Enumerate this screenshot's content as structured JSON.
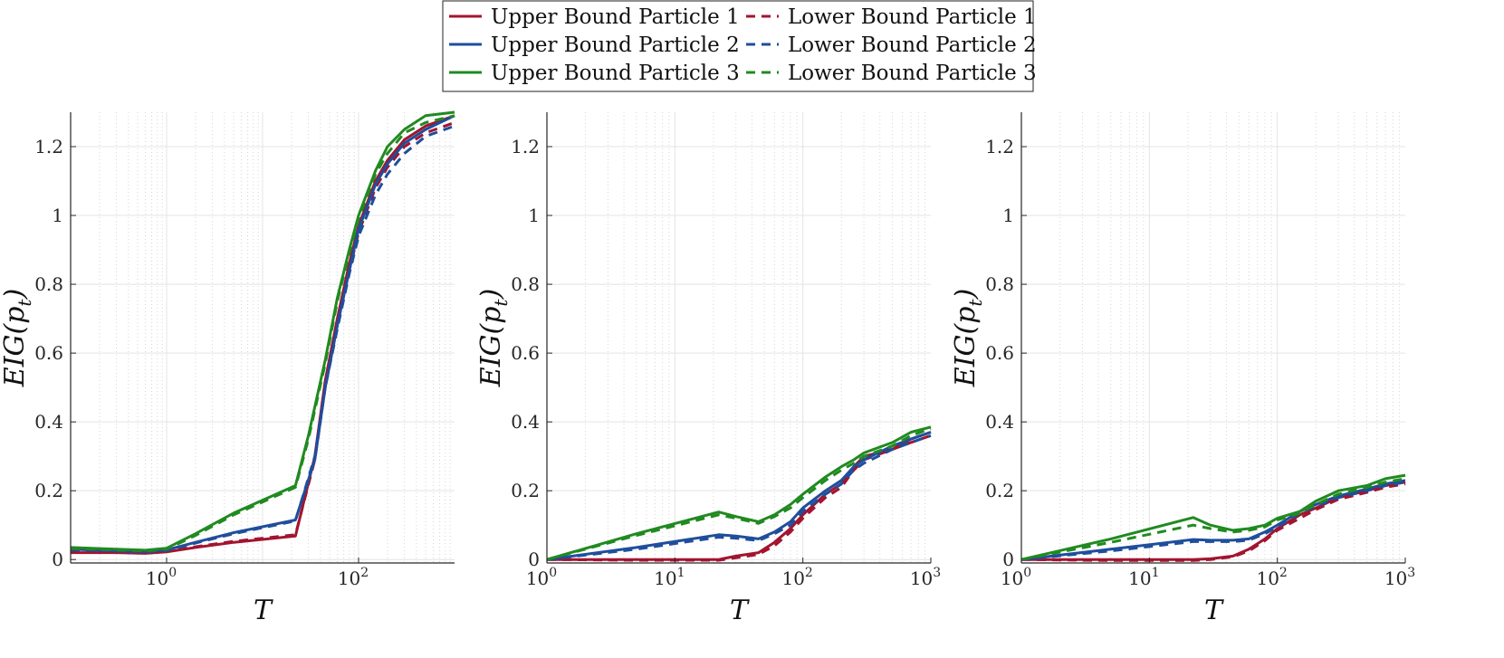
{
  "legend": {
    "entries": [
      {
        "label": "Upper Bound Particle 1",
        "color": "#a2142f",
        "style": "solid"
      },
      {
        "label": "Lower Bound Particle 1",
        "color": "#a2142f",
        "style": "dashed"
      },
      {
        "label": "Upper Bound Particle 2",
        "color": "#1f4e9c",
        "style": "solid"
      },
      {
        "label": "Lower Bound Particle 2",
        "color": "#1f4e9c",
        "style": "dashed"
      },
      {
        "label": "Upper Bound Particle 3",
        "color": "#208a20",
        "style": "solid"
      },
      {
        "label": "Lower Bound Particle 3",
        "color": "#208a20",
        "style": "dashed"
      }
    ],
    "placement": "top-center"
  },
  "chart_data": [
    {
      "type": "line",
      "xscale": "log",
      "xlim": [
        0.1,
        1000
      ],
      "ylim": [
        -0.01,
        1.3
      ],
      "xlabel": "T",
      "ylabel": "EIG(p_t)",
      "xticks": [
        {
          "base": "10",
          "exp": "0",
          "value": 1
        },
        {
          "base": "10",
          "exp": "2",
          "value": 100
        }
      ],
      "yticks": [
        "0",
        "0.2",
        "0.4",
        "0.6",
        "0.8",
        "1",
        "1.2"
      ],
      "grid": true,
      "series": [
        {
          "legend_index": 0,
          "x": [
            0.1,
            0.3,
            0.6,
            1,
            2,
            5,
            22,
            35,
            45,
            60,
            80,
            100,
            150,
            200,
            300,
            500,
            1000
          ],
          "y": [
            0.02,
            0.02,
            0.018,
            0.022,
            0.035,
            0.05,
            0.068,
            0.3,
            0.52,
            0.7,
            0.86,
            0.97,
            1.1,
            1.16,
            1.22,
            1.26,
            1.29
          ]
        },
        {
          "legend_index": 1,
          "x": [
            0.1,
            0.3,
            0.6,
            1,
            2,
            5,
            22,
            35,
            45,
            60,
            80,
            100,
            150,
            200,
            300,
            500,
            1000
          ],
          "y": [
            0.025,
            0.022,
            0.02,
            0.024,
            0.037,
            0.053,
            0.072,
            0.29,
            0.5,
            0.68,
            0.84,
            0.95,
            1.08,
            1.14,
            1.2,
            1.24,
            1.27
          ]
        },
        {
          "legend_index": 2,
          "x": [
            0.1,
            0.3,
            0.6,
            1,
            2,
            5,
            22,
            35,
            45,
            60,
            80,
            100,
            150,
            200,
            300,
            500,
            1000
          ],
          "y": [
            0.03,
            0.025,
            0.022,
            0.028,
            0.05,
            0.078,
            0.115,
            0.29,
            0.5,
            0.68,
            0.84,
            0.96,
            1.09,
            1.15,
            1.21,
            1.25,
            1.29
          ]
        },
        {
          "legend_index": 3,
          "x": [
            0.1,
            0.3,
            0.6,
            1,
            2,
            5,
            22,
            35,
            45,
            60,
            80,
            100,
            150,
            200,
            300,
            500,
            1000
          ],
          "y": [
            0.028,
            0.025,
            0.022,
            0.026,
            0.048,
            0.075,
            0.112,
            0.3,
            0.5,
            0.67,
            0.83,
            0.94,
            1.06,
            1.12,
            1.18,
            1.23,
            1.26
          ]
        },
        {
          "legend_index": 4,
          "x": [
            0.1,
            0.3,
            0.6,
            1,
            2,
            5,
            22,
            30,
            45,
            60,
            80,
            100,
            150,
            200,
            300,
            500,
            1000
          ],
          "y": [
            0.035,
            0.03,
            0.027,
            0.033,
            0.075,
            0.135,
            0.215,
            0.36,
            0.58,
            0.76,
            0.9,
            1.0,
            1.13,
            1.2,
            1.25,
            1.29,
            1.3
          ]
        },
        {
          "legend_index": 5,
          "x": [
            0.1,
            0.3,
            0.6,
            1,
            2,
            5,
            22,
            30,
            45,
            60,
            80,
            100,
            150,
            200,
            300,
            500,
            1000
          ],
          "y": [
            0.032,
            0.028,
            0.025,
            0.03,
            0.07,
            0.13,
            0.21,
            0.35,
            0.57,
            0.75,
            0.89,
            0.99,
            1.12,
            1.18,
            1.24,
            1.27,
            1.29
          ]
        }
      ]
    },
    {
      "type": "line",
      "xscale": "log",
      "xlim": [
        1,
        1000
      ],
      "ylim": [
        -0.01,
        1.3
      ],
      "xlabel": "T",
      "ylabel": "EIG(p_t)",
      "xticks": [
        {
          "base": "10",
          "exp": "0",
          "value": 1
        },
        {
          "base": "10",
          "exp": "1",
          "value": 10
        },
        {
          "base": "10",
          "exp": "2",
          "value": 100
        },
        {
          "base": "10",
          "exp": "3",
          "value": 1000
        }
      ],
      "yticks": [
        "0",
        "0.2",
        "0.4",
        "0.6",
        "0.8",
        "1",
        "1.2"
      ],
      "grid": true,
      "series": [
        {
          "legend_index": 0,
          "x": [
            1,
            5,
            22,
            30,
            45,
            60,
            80,
            100,
            150,
            200,
            250,
            300,
            500,
            700,
            1000
          ],
          "y": [
            0,
            0,
            0,
            0.01,
            0.02,
            0.05,
            0.09,
            0.13,
            0.19,
            0.22,
            0.27,
            0.3,
            0.32,
            0.35,
            0.37
          ]
        },
        {
          "legend_index": 1,
          "x": [
            1,
            5,
            22,
            30,
            45,
            60,
            80,
            100,
            150,
            200,
            250,
            300,
            500,
            700,
            1000
          ],
          "y": [
            0,
            -0.002,
            -0.002,
            0.005,
            0.015,
            0.04,
            0.08,
            0.12,
            0.18,
            0.21,
            0.26,
            0.29,
            0.32,
            0.34,
            0.36
          ]
        },
        {
          "legend_index": 2,
          "x": [
            1,
            5,
            22,
            30,
            45,
            60,
            80,
            100,
            150,
            200,
            250,
            300,
            500,
            700,
            1000
          ],
          "y": [
            0,
            0.035,
            0.072,
            0.068,
            0.06,
            0.08,
            0.11,
            0.15,
            0.2,
            0.23,
            0.27,
            0.29,
            0.33,
            0.35,
            0.37
          ]
        },
        {
          "legend_index": 3,
          "x": [
            1,
            5,
            22,
            30,
            45,
            60,
            80,
            100,
            150,
            200,
            250,
            300,
            500,
            700,
            1000
          ],
          "y": [
            0,
            0.03,
            0.065,
            0.062,
            0.055,
            0.075,
            0.1,
            0.14,
            0.19,
            0.22,
            0.26,
            0.28,
            0.32,
            0.34,
            0.36
          ]
        },
        {
          "legend_index": 4,
          "x": [
            1,
            5,
            22,
            30,
            45,
            60,
            80,
            100,
            150,
            200,
            250,
            300,
            500,
            700,
            1000
          ],
          "y": [
            0,
            0.075,
            0.138,
            0.125,
            0.11,
            0.13,
            0.16,
            0.19,
            0.24,
            0.27,
            0.29,
            0.31,
            0.34,
            0.37,
            0.385
          ]
        },
        {
          "legend_index": 5,
          "x": [
            1,
            5,
            22,
            30,
            45,
            60,
            80,
            100,
            150,
            200,
            250,
            300,
            500,
            700,
            1000
          ],
          "y": [
            0,
            0.07,
            0.13,
            0.12,
            0.105,
            0.125,
            0.15,
            0.18,
            0.23,
            0.26,
            0.28,
            0.3,
            0.33,
            0.36,
            0.38
          ]
        }
      ]
    },
    {
      "type": "line",
      "xscale": "log",
      "xlim": [
        1,
        1000
      ],
      "ylim": [
        -0.01,
        1.3
      ],
      "xlabel": "T",
      "ylabel": "EIG(p_t)",
      "xticks": [
        {
          "base": "10",
          "exp": "0",
          "value": 1
        },
        {
          "base": "10",
          "exp": "1",
          "value": 10
        },
        {
          "base": "10",
          "exp": "2",
          "value": 100
        },
        {
          "base": "10",
          "exp": "3",
          "value": 1000
        }
      ],
      "yticks": [
        "0",
        "0.2",
        "0.4",
        "0.6",
        "0.8",
        "1",
        "1.2"
      ],
      "grid": true,
      "series": [
        {
          "legend_index": 0,
          "x": [
            1,
            5,
            22,
            30,
            45,
            60,
            80,
            100,
            150,
            200,
            300,
            500,
            700,
            1000
          ],
          "y": [
            0,
            0,
            0,
            0.002,
            0.01,
            0.03,
            0.06,
            0.09,
            0.13,
            0.15,
            0.18,
            0.2,
            0.215,
            0.225
          ]
        },
        {
          "legend_index": 1,
          "x": [
            1,
            5,
            22,
            30,
            45,
            60,
            80,
            100,
            150,
            200,
            300,
            500,
            700,
            1000
          ],
          "y": [
            0,
            -0.003,
            -0.003,
            0,
            0.008,
            0.025,
            0.055,
            0.085,
            0.12,
            0.145,
            0.175,
            0.195,
            0.21,
            0.22
          ]
        },
        {
          "legend_index": 2,
          "x": [
            1,
            5,
            22,
            30,
            45,
            60,
            80,
            100,
            150,
            200,
            300,
            500,
            700,
            1000
          ],
          "y": [
            0,
            0.03,
            0.058,
            0.056,
            0.056,
            0.06,
            0.08,
            0.1,
            0.14,
            0.16,
            0.185,
            0.205,
            0.22,
            0.23
          ]
        },
        {
          "legend_index": 3,
          "x": [
            1,
            5,
            22,
            30,
            45,
            60,
            80,
            100,
            150,
            200,
            300,
            500,
            700,
            1000
          ],
          "y": [
            0,
            0.025,
            0.052,
            0.052,
            0.052,
            0.056,
            0.075,
            0.095,
            0.135,
            0.155,
            0.18,
            0.2,
            0.215,
            0.225
          ]
        },
        {
          "legend_index": 4,
          "x": [
            1,
            5,
            22,
            30,
            45,
            60,
            80,
            100,
            150,
            200,
            300,
            500,
            700,
            1000
          ],
          "y": [
            0,
            0.06,
            0.122,
            0.1,
            0.085,
            0.09,
            0.1,
            0.12,
            0.14,
            0.17,
            0.2,
            0.215,
            0.235,
            0.245
          ]
        },
        {
          "legend_index": 5,
          "x": [
            1,
            5,
            22,
            30,
            45,
            60,
            80,
            100,
            150,
            200,
            300,
            500,
            700,
            1000
          ],
          "y": [
            0,
            0.05,
            0.1,
            0.09,
            0.08,
            0.085,
            0.095,
            0.115,
            0.135,
            0.16,
            0.19,
            0.21,
            0.225,
            0.235
          ]
        }
      ]
    }
  ]
}
